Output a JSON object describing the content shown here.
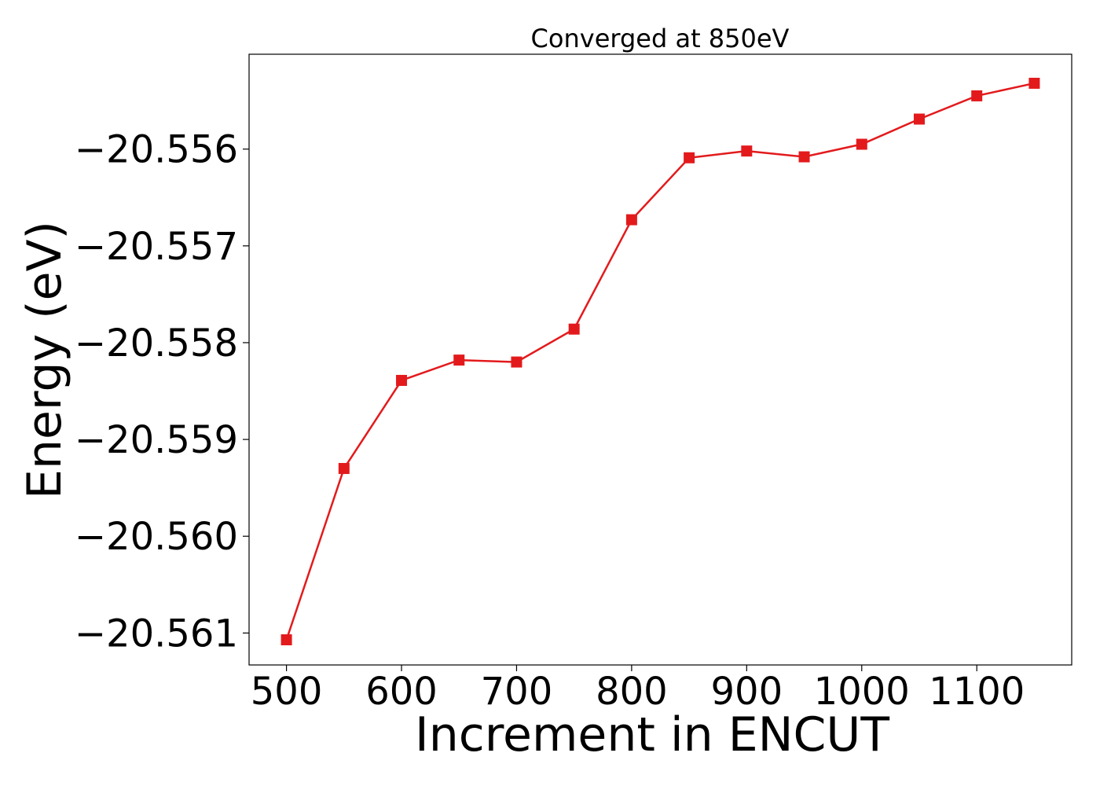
{
  "chart_data": {
    "type": "line",
    "title": "Converged at 850eV",
    "xlabel": "Increment in ENCUT",
    "ylabel": "Energy (eV)",
    "xlim": [
      467.5,
      1182.5
    ],
    "ylim": [
      -20.56133,
      -20.55502
    ],
    "x_ticks": [
      500,
      600,
      700,
      800,
      900,
      1000,
      1100
    ],
    "x_tick_labels": [
      "500",
      "600",
      "700",
      "800",
      "900",
      "1000",
      "1100"
    ],
    "y_ticks": [
      -20.556,
      -20.557,
      -20.558,
      -20.559,
      -20.56,
      -20.561
    ],
    "y_tick_labels": [
      "−20.556",
      "−20.557",
      "−20.558",
      "−20.559",
      "−20.560",
      "−20.561"
    ],
    "grid": false,
    "series": [
      {
        "color": "#e31a1c",
        "marker": "square",
        "x": [
          500,
          550,
          600,
          650,
          700,
          750,
          800,
          850,
          900,
          950,
          1000,
          1050,
          1100,
          1150
        ],
        "values": [
          -20.56107,
          -20.5593,
          -20.55839,
          -20.55818,
          -20.5582,
          -20.55786,
          -20.55673,
          -20.55609,
          -20.55602,
          -20.55608,
          -20.55595,
          -20.55569,
          -20.55545,
          -20.55532
        ]
      }
    ]
  }
}
